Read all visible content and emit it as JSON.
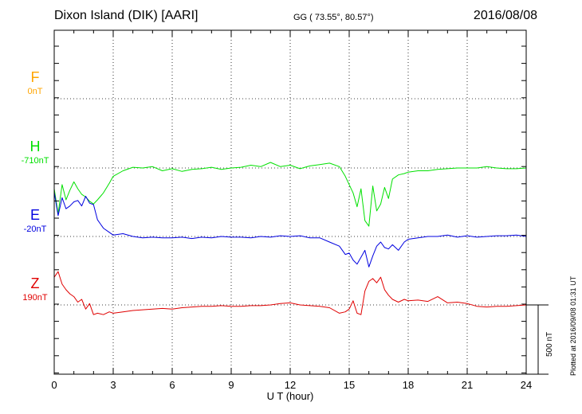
{
  "header": {
    "station": "Dixon Island (DIK)  [AARI]",
    "coords": "GG ( 73.55°,  80.57°)",
    "date": "2016/08/08"
  },
  "components": [
    {
      "name": "F",
      "baseline": "0nT",
      "color": "#FFA500"
    },
    {
      "name": "H",
      "baseline": "-710nT",
      "color": "#00E000"
    },
    {
      "name": "E",
      "baseline": "-20nT",
      "color": "#0000E0"
    },
    {
      "name": "Z",
      "baseline": "190nT",
      "color": "#E00000"
    }
  ],
  "scale_label": "500 nT",
  "plotted_label": "Plotted at 2016/09/08 01:31 UT",
  "chart_data": {
    "type": "line",
    "xlabel": "U T (hour)",
    "xlim": [
      0,
      24
    ],
    "xticks": [
      0,
      3,
      6,
      9,
      12,
      15,
      18,
      21,
      24
    ],
    "y_unit": "nT",
    "scale_bar_nT": 500,
    "grid": true,
    "series": [
      {
        "name": "H",
        "color": "#00E000",
        "baseline_nT": -710,
        "x": [
          0,
          0.2,
          0.4,
          0.6,
          0.8,
          1.0,
          1.2,
          1.4,
          1.6,
          1.8,
          2.0,
          2.2,
          2.5,
          2.8,
          3.0,
          3.5,
          4.0,
          4.5,
          5.0,
          5.5,
          6.0,
          6.5,
          7.0,
          7.5,
          8.0,
          8.5,
          9.0,
          9.5,
          10.0,
          10.5,
          11.0,
          11.5,
          12.0,
          12.5,
          13.0,
          13.5,
          14.0,
          14.5,
          14.8,
          15.0,
          15.2,
          15.4,
          15.6,
          15.8,
          16.0,
          16.2,
          16.4,
          16.6,
          16.8,
          17.0,
          17.2,
          17.5,
          17.8,
          18.0,
          18.5,
          19.0,
          19.5,
          20.0,
          20.5,
          21.0,
          21.5,
          22.0,
          22.5,
          23.0,
          23.5,
          24.0
        ],
        "y": [
          -150,
          -330,
          -120,
          -230,
          -160,
          -100,
          -150,
          -190,
          -210,
          -240,
          -260,
          -230,
          -180,
          -110,
          -60,
          -20,
          5,
          0,
          10,
          -20,
          -5,
          -25,
          -10,
          -5,
          5,
          -10,
          0,
          5,
          20,
          10,
          40,
          10,
          20,
          -5,
          15,
          25,
          35,
          10,
          -60,
          -120,
          -180,
          -280,
          -150,
          -380,
          -420,
          -130,
          -310,
          -260,
          -140,
          -220,
          -80,
          -50,
          -40,
          -30,
          -20,
          -20,
          -10,
          -5,
          0,
          0,
          0,
          10,
          0,
          -5,
          -5,
          0
        ]
      },
      {
        "name": "E",
        "color": "#0000E0",
        "baseline_nT": -20,
        "x": [
          0,
          0.2,
          0.4,
          0.6,
          0.8,
          1.0,
          1.2,
          1.4,
          1.6,
          1.8,
          2.0,
          2.2,
          2.5,
          2.8,
          3.0,
          3.5,
          4.0,
          4.5,
          5.0,
          5.5,
          6.0,
          6.5,
          7.0,
          7.5,
          8.0,
          8.5,
          9.0,
          9.5,
          10.0,
          10.5,
          11.0,
          11.5,
          12.0,
          12.5,
          13.0,
          13.5,
          14.0,
          14.5,
          14.8,
          15.0,
          15.2,
          15.4,
          15.6,
          15.8,
          16.0,
          16.2,
          16.4,
          16.6,
          16.8,
          17.0,
          17.2,
          17.5,
          17.8,
          18.0,
          18.5,
          19.0,
          19.5,
          20.0,
          20.5,
          21.0,
          21.5,
          22.0,
          22.5,
          23.0,
          23.5,
          24.0
        ],
        "y": [
          320,
          150,
          280,
          200,
          220,
          250,
          260,
          220,
          290,
          240,
          230,
          120,
          60,
          30,
          10,
          20,
          0,
          -10,
          -5,
          -10,
          -10,
          -5,
          -15,
          -5,
          -10,
          0,
          -5,
          -5,
          -10,
          0,
          -5,
          5,
          0,
          5,
          -10,
          -10,
          -40,
          -70,
          -130,
          -120,
          -170,
          -200,
          -150,
          -100,
          -220,
          -140,
          -70,
          -40,
          -80,
          -90,
          -60,
          -100,
          -40,
          -20,
          -10,
          0,
          0,
          10,
          -5,
          5,
          -5,
          0,
          5,
          5,
          10,
          0
        ]
      },
      {
        "name": "Z",
        "color": "#E00000",
        "baseline_nT": 190,
        "x": [
          0,
          0.2,
          0.4,
          0.6,
          0.8,
          1.0,
          1.2,
          1.4,
          1.6,
          1.8,
          2.0,
          2.2,
          2.5,
          2.8,
          3.0,
          3.5,
          4.0,
          4.5,
          5.0,
          5.5,
          6.0,
          6.5,
          7.0,
          7.5,
          8.0,
          8.5,
          9.0,
          9.5,
          10.0,
          10.5,
          11.0,
          11.5,
          12.0,
          12.5,
          13.0,
          13.5,
          14.0,
          14.5,
          14.8,
          15.0,
          15.2,
          15.4,
          15.6,
          15.8,
          16.0,
          16.2,
          16.4,
          16.6,
          16.8,
          17.0,
          17.2,
          17.5,
          17.8,
          18.0,
          18.5,
          19.0,
          19.5,
          20.0,
          20.5,
          21.0,
          21.5,
          22.0,
          22.5,
          23.0,
          23.5,
          24.0
        ],
        "y": [
          200,
          240,
          150,
          110,
          80,
          60,
          20,
          40,
          -30,
          10,
          -70,
          -60,
          -70,
          -50,
          -60,
          -50,
          -40,
          -35,
          -30,
          -25,
          -30,
          -20,
          -15,
          -10,
          -10,
          -5,
          -10,
          -10,
          -5,
          -5,
          0,
          10,
          15,
          0,
          -5,
          -10,
          -20,
          -60,
          -50,
          -30,
          30,
          -60,
          -70,
          100,
          170,
          190,
          160,
          200,
          110,
          70,
          40,
          20,
          40,
          30,
          35,
          25,
          60,
          15,
          20,
          10,
          -10,
          -15,
          -10,
          -10,
          -5,
          0
        ]
      }
    ]
  }
}
